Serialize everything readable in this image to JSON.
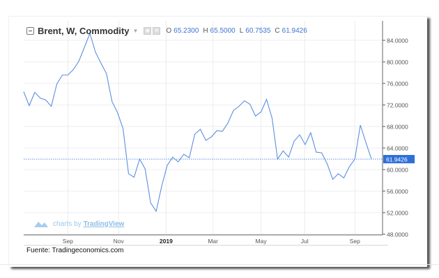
{
  "legend": {
    "title": "Brent, W, Commodity",
    "o_label": "O",
    "o": "65.2300",
    "h_label": "H",
    "h": "65.5000",
    "l_label": "L",
    "l": "60.7535",
    "c_label": "C",
    "c": "61.9426"
  },
  "branding": {
    "prefix": "charts by",
    "name": "TradingView"
  },
  "source": "Fuente: Tradingeconomics.com",
  "colors": {
    "line": "#5b8fe0",
    "last_badge": "#2e6fd8",
    "grid": "#ececec"
  },
  "chart_data": {
    "type": "line",
    "title": "Brent, W, Commodity",
    "ylim": [
      48,
      86
    ],
    "yticks": [
      84,
      80,
      76,
      72,
      68,
      64,
      60,
      56,
      52,
      48
    ],
    "ytick_labels": [
      "84.0000",
      "80.0000",
      "76.0000",
      "72.0000",
      "68.0000",
      "64.0000",
      "60.0000",
      "56.0000",
      "52.0000",
      "48.0000"
    ],
    "last_value": 61.9426,
    "last_label": "61.9426",
    "xticks": [
      {
        "label": "Sep",
        "week": 8
      },
      {
        "label": "Nov",
        "week": 17.2
      },
      {
        "label": "2019",
        "week": 25.8,
        "bold": true
      },
      {
        "label": "Mar",
        "week": 34.3
      },
      {
        "label": "May",
        "week": 43
      },
      {
        "label": "Jul",
        "week": 50.9
      },
      {
        "label": "Sep",
        "week": 60
      }
    ],
    "series": [
      {
        "name": "Brent",
        "values": [
          74.45,
          71.87,
          74.32,
          73.29,
          72.9,
          71.74,
          75.87,
          77.55,
          77.55,
          78.58,
          80.13,
          82.71,
          85.29,
          81.81,
          79.74,
          77.81,
          72.65,
          70.58,
          67.61,
          59.23,
          58.58,
          61.94,
          60.13,
          53.81,
          52.26,
          56.9,
          60.77,
          62.32,
          61.42,
          62.84,
          62.19,
          66.58,
          67.48,
          65.42,
          66.06,
          67.23,
          67.1,
          68.65,
          70.97,
          71.74,
          72.77,
          72.13,
          69.94,
          70.71,
          73.03,
          69.55,
          61.94,
          63.48,
          62.32,
          65.29,
          66.45,
          64.65,
          66.84,
          63.23,
          63.1,
          61.03,
          58.19,
          59.23,
          58.45,
          60.52,
          61.94,
          68.26,
          65.03,
          61.94
        ]
      }
    ]
  }
}
